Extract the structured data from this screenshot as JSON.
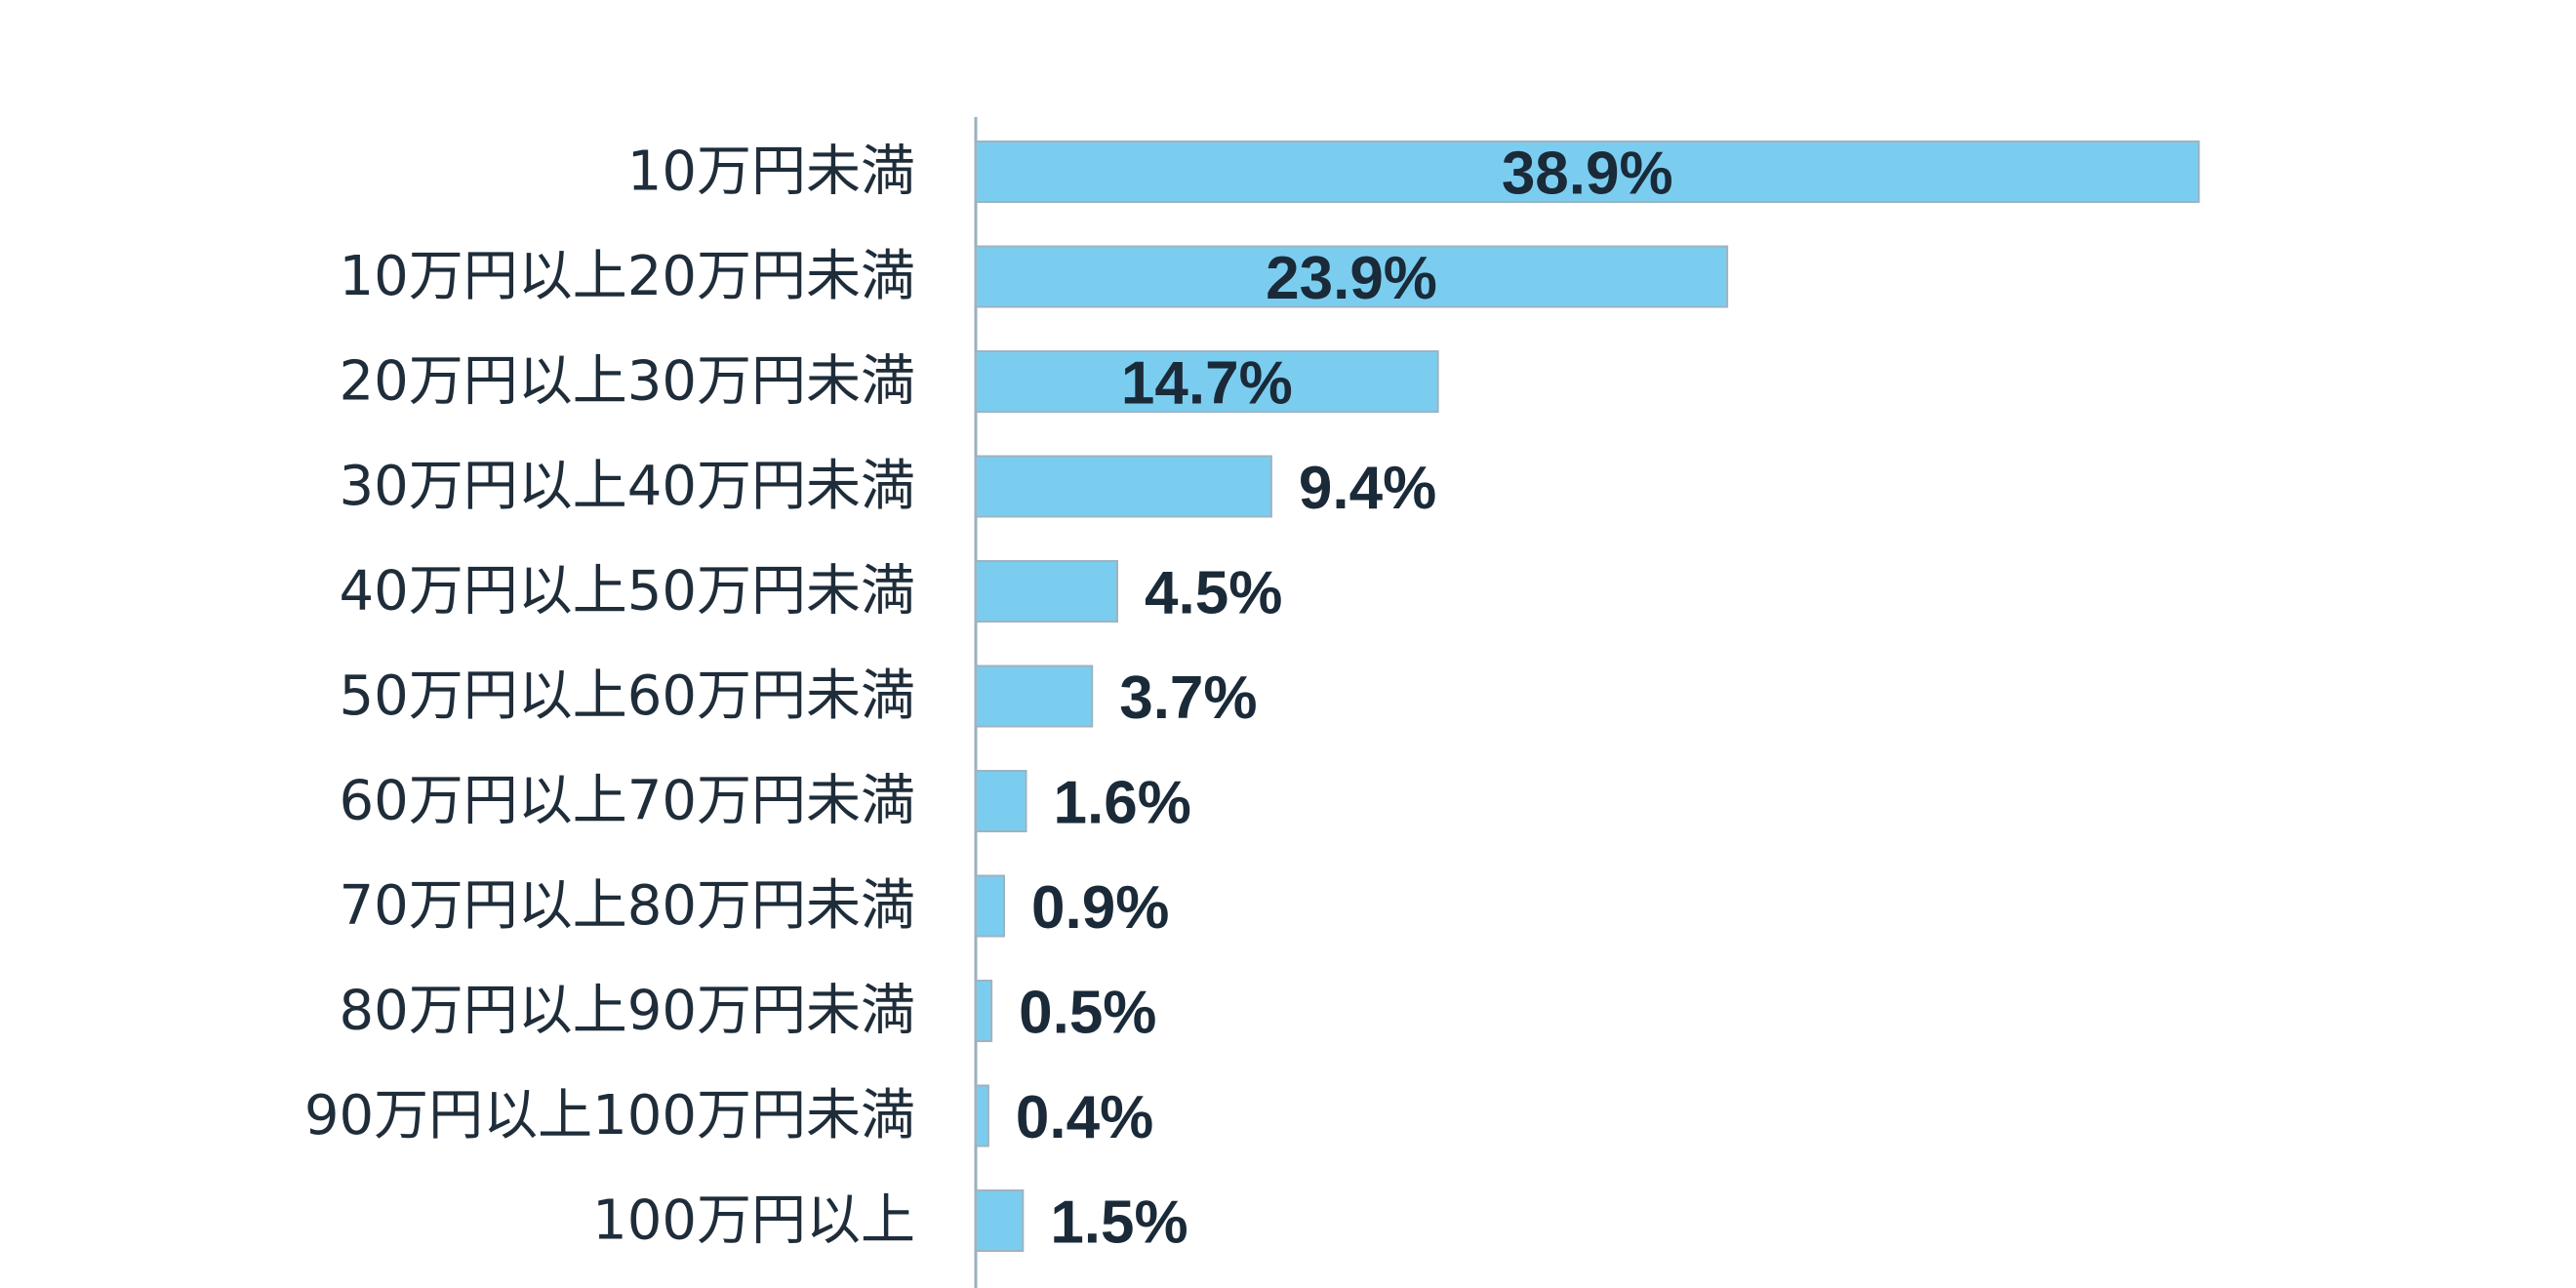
{
  "chart_data": {
    "type": "bar",
    "orientation": "horizontal",
    "categories": [
      "10万円未満",
      "10万円以上20万円未満",
      "20万円以上30万円未満",
      "30万円以上40万円未満",
      "40万円以上50万円未満",
      "50万円以上60万円未満",
      "60万円以上70万円未満",
      "70万円以上80万円未満",
      "80万円以上90万円未満",
      "90万円以上100万円未満",
      "100万円以上"
    ],
    "values": [
      38.9,
      23.9,
      14.7,
      9.4,
      4.5,
      3.7,
      1.6,
      0.9,
      0.5,
      0.4,
      1.5
    ],
    "value_labels": [
      "38.9%",
      "23.9%",
      "14.7%",
      "9.4%",
      "4.5%",
      "3.7%",
      "1.6%",
      "0.9%",
      "0.5%",
      "0.4%",
      "1.5%"
    ],
    "title": "",
    "xlabel": "",
    "ylabel": "",
    "xlim": [
      0,
      45
    ],
    "grid": false,
    "legend": "none",
    "bar_color": "#7bcdf0",
    "label_color": "#1a2a38"
  }
}
